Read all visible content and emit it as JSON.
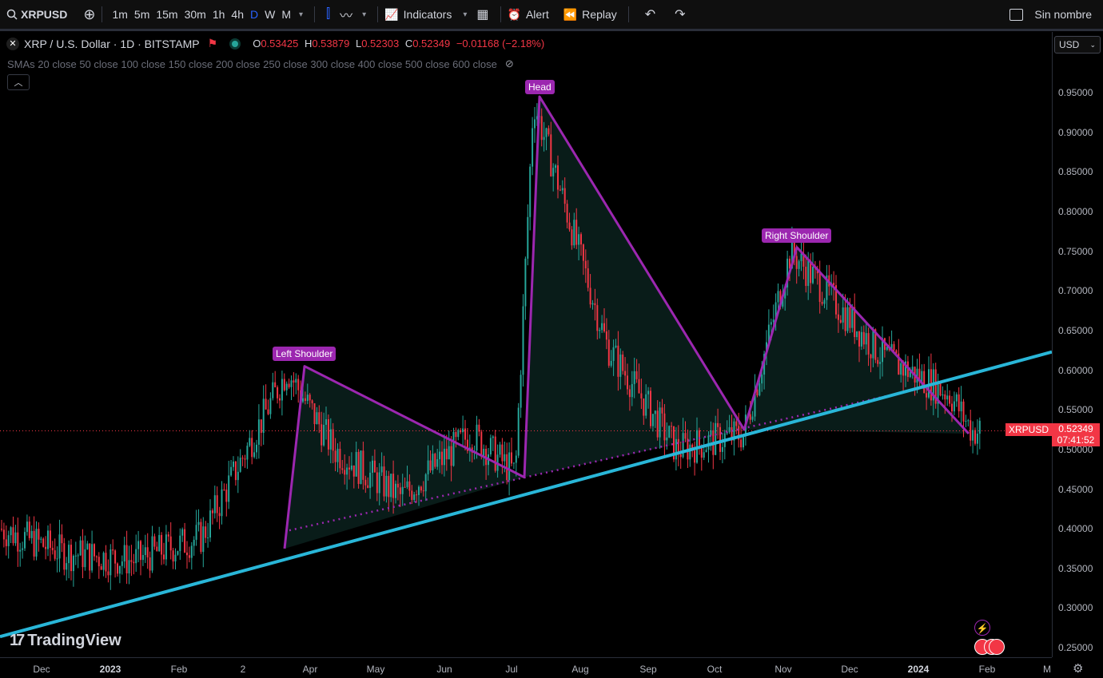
{
  "toolbar": {
    "symbol": "XRPUSD",
    "intervals": [
      "1m",
      "5m",
      "15m",
      "30m",
      "1h",
      "4h",
      "D",
      "W",
      "M"
    ],
    "active_interval": "D",
    "indicators_label": "Indicators",
    "alert_label": "Alert",
    "replay_label": "Replay",
    "layout_name": "Sin nombre"
  },
  "legend": {
    "title": "XRP / U.S. Dollar · 1D · BITSTAMP",
    "open_key": "O",
    "open": "0.53425",
    "high_key": "H",
    "high": "0.53879",
    "low_key": "L",
    "low": "0.52303",
    "close_key": "C",
    "close": "0.52349",
    "change": "−0.01168 (−2.18%)",
    "sma": "SMAs 20 close 50 close 100 close 150 close 200 close 250 close 300 close 400 close 500 close 600 close"
  },
  "currency": "USD",
  "price_axis": [
    "0.95000",
    "0.90000",
    "0.85000",
    "0.80000",
    "0.75000",
    "0.70000",
    "0.65000",
    "0.60000",
    "0.55000",
    "0.50000",
    "0.45000",
    "0.40000",
    "0.35000",
    "0.30000",
    "0.25000"
  ],
  "time_axis": [
    "Dec",
    "2023",
    "Feb",
    "2",
    "Apr",
    "May",
    "Jun",
    "Jul",
    "Aug",
    "Sep",
    "Oct",
    "Nov",
    "Dec",
    "2024",
    "Feb",
    "M"
  ],
  "current_price": {
    "symbol": "XRPUSD",
    "price": "0.52349",
    "countdown": "07:41:52"
  },
  "pattern_labels": {
    "left": "Left Shoulder",
    "head": "Head",
    "right": "Right Shoulder"
  },
  "brand": "TradingView",
  "colors": {
    "up": "#26a69a",
    "down": "#f23645",
    "pattern": "#9c27b0",
    "trendline": "#29b6d8",
    "accent": "#2962ff"
  },
  "chart_data": {
    "type": "candlestick",
    "symbol": "XRPUSD",
    "series": [
      {
        "date": "2022-12",
        "close": 0.37
      },
      {
        "date": "2023-01",
        "close": 0.36
      },
      {
        "date": "2023-02",
        "close": 0.39
      },
      {
        "date": "2023-03-25",
        "close": 0.6
      },
      {
        "date": "2023-04",
        "close": 0.5
      },
      {
        "date": "2023-05",
        "close": 0.44
      },
      {
        "date": "2023-06",
        "close": 0.52
      },
      {
        "date": "2023-07-05",
        "close": 0.47
      },
      {
        "date": "2023-07-13",
        "close": 0.94
      },
      {
        "date": "2023-08",
        "close": 0.63
      },
      {
        "date": "2023-09",
        "close": 0.5
      },
      {
        "date": "2023-10-15",
        "close": 0.52
      },
      {
        "date": "2023-11-05",
        "close": 0.75
      },
      {
        "date": "2023-12",
        "close": 0.62
      },
      {
        "date": "2024-01",
        "close": 0.57
      },
      {
        "date": "2024-01-25",
        "close": 0.52349
      }
    ],
    "ylim": [
      0.25,
      0.97
    ]
  }
}
